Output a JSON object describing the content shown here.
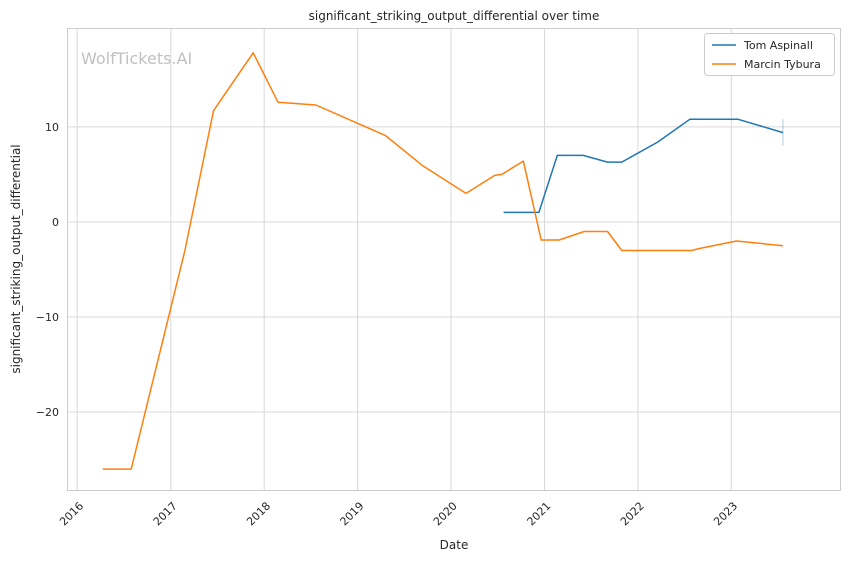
{
  "chart_data": {
    "type": "line",
    "title": "significant_striking_output_differential over time",
    "xlabel": "Date",
    "ylabel": "significant_striking_output_differential",
    "watermark": "WolfTickets.AI",
    "xlim": [
      "2015-11-26",
      "2024-03-01"
    ],
    "ylim": [
      -28.2,
      20.3
    ],
    "x_ticks": [
      "2016",
      "2017",
      "2018",
      "2019",
      "2020",
      "2021",
      "2022",
      "2023"
    ],
    "y_ticks": [
      -20,
      -10,
      0,
      10
    ],
    "grid": true,
    "legend_position": "top-right",
    "series": [
      {
        "name": "Tom Aspinall",
        "color": "#1f77b4",
        "points": [
          [
            "2020-07-25",
            1.0
          ],
          [
            "2020-12-10",
            1.0
          ],
          [
            "2021-02-20",
            7.0
          ],
          [
            "2021-06-01",
            7.0
          ],
          [
            "2021-09-04",
            6.3
          ],
          [
            "2021-10-30",
            6.3
          ],
          [
            "2022-03-19",
            8.4
          ],
          [
            "2022-07-23",
            10.8
          ],
          [
            "2023-01-28",
            10.8
          ],
          [
            "2023-07-22",
            9.4
          ]
        ],
        "error_bar": {
          "x": "2023-07-22",
          "low": 8.0,
          "high": 10.8
        }
      },
      {
        "name": "Marcin Tybura",
        "color": "#ff7f0e",
        "points": [
          [
            "2016-04-10",
            -26.0
          ],
          [
            "2016-07-30",
            -26.0
          ],
          [
            "2017-02-25",
            -3.0
          ],
          [
            "2017-06-17",
            11.7
          ],
          [
            "2017-11-19",
            17.8
          ],
          [
            "2018-02-24",
            12.6
          ],
          [
            "2018-07-22",
            12.3
          ],
          [
            "2019-04-20",
            9.1
          ],
          [
            "2019-09-14",
            5.9
          ],
          [
            "2020-02-29",
            3.0
          ],
          [
            "2020-06-20",
            4.9
          ],
          [
            "2020-07-18",
            5.0
          ],
          [
            "2020-10-10",
            6.4
          ],
          [
            "2020-12-19",
            -1.9
          ],
          [
            "2021-02-27",
            -1.9
          ],
          [
            "2021-06-05",
            -1.0
          ],
          [
            "2021-09-04",
            -1.0
          ],
          [
            "2021-10-30",
            -3.0
          ],
          [
            "2022-07-30",
            -3.0
          ],
          [
            "2022-08-27",
            -2.8
          ],
          [
            "2023-01-21",
            -2.0
          ],
          [
            "2023-07-22",
            -2.5
          ]
        ]
      }
    ]
  }
}
